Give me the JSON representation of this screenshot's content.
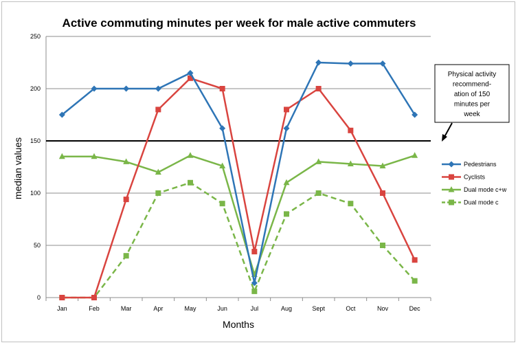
{
  "chart_data": {
    "type": "line",
    "title": "Active commuting minutes per week for male active commuters",
    "xlabel": "Months",
    "ylabel": "median values",
    "ylim": [
      0,
      250
    ],
    "yticks": [
      0,
      50,
      100,
      150,
      200,
      250
    ],
    "grid": true,
    "legend_position": "right",
    "categories": [
      "Jan",
      "Feb",
      "Mar",
      "Apr",
      "May",
      "Jun",
      "Jul",
      "Aug",
      "Sept",
      "Oct",
      "Nov",
      "Dec"
    ],
    "series": [
      {
        "name": "Pedestrians",
        "color": "#2e75b6",
        "marker": "diamond",
        "dash": false,
        "values": [
          175,
          200,
          200,
          200,
          215,
          162,
          14,
          162,
          225,
          224,
          224,
          175
        ]
      },
      {
        "name": "Cyclists",
        "color": "#d9443f",
        "marker": "square",
        "dash": false,
        "values": [
          0,
          0,
          94,
          180,
          210,
          200,
          44,
          180,
          200,
          160,
          100,
          36
        ]
      },
      {
        "name": "Dual mode c+w",
        "color": "#7ab648",
        "marker": "triangle",
        "dash": false,
        "values": [
          135,
          135,
          130,
          120,
          136,
          126,
          22,
          110,
          130,
          128,
          126,
          136
        ]
      },
      {
        "name": "Dual mode c",
        "color": "#7ab648",
        "marker": "square",
        "dash": true,
        "values": [
          0,
          0,
          40,
          100,
          110,
          90,
          6,
          80,
          100,
          90,
          50,
          16
        ]
      }
    ],
    "reference_line": {
      "value": 150,
      "color": "#000000"
    },
    "annotation": {
      "lines": [
        "Physical activity",
        "recommend-",
        "ation of 150",
        "minutes per",
        "week"
      ]
    }
  }
}
